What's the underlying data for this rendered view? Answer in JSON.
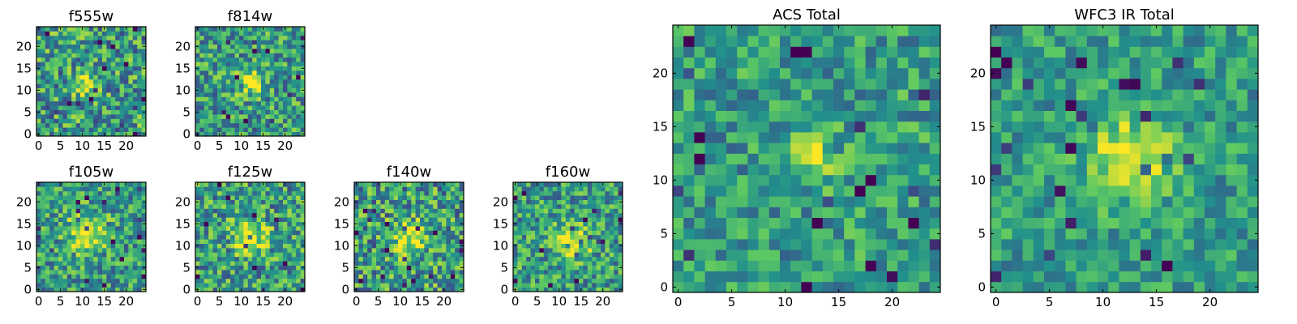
{
  "colormap": {
    "name": "viridis",
    "stops": [
      "#440154",
      "#3b528b",
      "#21918c",
      "#5ec962",
      "#fde725"
    ]
  },
  "chart_data": [
    {
      "type": "heatmap",
      "title": "f555w",
      "grid_size": 25,
      "xlim": [
        -0.5,
        24.5
      ],
      "ylim": [
        -0.5,
        24.5
      ],
      "xticks": [
        0,
        5,
        10,
        15,
        20
      ],
      "yticks": [
        0,
        5,
        10,
        15,
        20
      ],
      "source_center": [
        11,
        11
      ],
      "source_width": 2.0,
      "noise": 0.42,
      "seed": 11
    },
    {
      "type": "heatmap",
      "title": "f814w",
      "grid_size": 25,
      "xlim": [
        -0.5,
        24.5
      ],
      "ylim": [
        -0.5,
        24.5
      ],
      "xticks": [
        0,
        5,
        10,
        15,
        20
      ],
      "yticks": [
        0,
        5,
        10,
        15,
        20
      ],
      "source_center": [
        12,
        12
      ],
      "source_width": 2.0,
      "noise": 0.38,
      "seed": 23
    },
    {
      "type": "heatmap",
      "title": "f105w",
      "grid_size": 25,
      "xlim": [
        -0.5,
        24.5
      ],
      "ylim": [
        -0.5,
        24.5
      ],
      "xticks": [
        0,
        5,
        10,
        15,
        20
      ],
      "yticks": [
        0,
        5,
        10,
        15,
        20
      ],
      "source_center": [
        11,
        13
      ],
      "source_width": 3.0,
      "noise": 0.36,
      "seed": 37
    },
    {
      "type": "heatmap",
      "title": "f125w",
      "grid_size": 25,
      "xlim": [
        -0.5,
        24.5
      ],
      "ylim": [
        -0.5,
        24.5
      ],
      "xticks": [
        0,
        5,
        10,
        15,
        20
      ],
      "yticks": [
        0,
        5,
        10,
        15,
        20
      ],
      "source_center": [
        12,
        12
      ],
      "source_width": 2.6,
      "noise": 0.4,
      "seed": 41
    },
    {
      "type": "heatmap",
      "title": "f140w",
      "grid_size": 25,
      "xlim": [
        -0.5,
        24.5
      ],
      "ylim": [
        -0.5,
        24.5
      ],
      "xticks": [
        0,
        5,
        10,
        15,
        20
      ],
      "yticks": [
        0,
        5,
        10,
        15,
        20
      ],
      "source_center": [
        12,
        12
      ],
      "source_width": 2.6,
      "noise": 0.42,
      "seed": 53
    },
    {
      "type": "heatmap",
      "title": "f160w",
      "grid_size": 25,
      "xlim": [
        -0.5,
        24.5
      ],
      "ylim": [
        -0.5,
        24.5
      ],
      "xticks": [
        0,
        5,
        10,
        15,
        20
      ],
      "yticks": [
        0,
        5,
        10,
        15,
        20
      ],
      "source_center": [
        13,
        11
      ],
      "source_width": 2.8,
      "noise": 0.36,
      "seed": 67
    },
    {
      "type": "heatmap",
      "title": "ACS Total",
      "grid_size": 25,
      "xlim": [
        -0.5,
        24.5
      ],
      "ylim": [
        -0.5,
        24.5
      ],
      "xticks": [
        0,
        5,
        10,
        15,
        20
      ],
      "yticks": [
        0,
        5,
        10,
        15,
        20
      ],
      "source_center": [
        12,
        12.5
      ],
      "source_width": 1.6,
      "noise": 0.3,
      "seed": 71
    },
    {
      "type": "heatmap",
      "title": "WFC3 IR Total",
      "grid_size": 25,
      "xlim": [
        -0.5,
        24.5
      ],
      "ylim": [
        -0.5,
        24.5
      ],
      "xticks": [
        0,
        5,
        10,
        15,
        20
      ],
      "yticks": [
        0,
        5,
        10,
        15,
        20
      ],
      "source_center": [
        12.5,
        12
      ],
      "source_width": 2.6,
      "noise": 0.26,
      "seed": 83
    }
  ]
}
